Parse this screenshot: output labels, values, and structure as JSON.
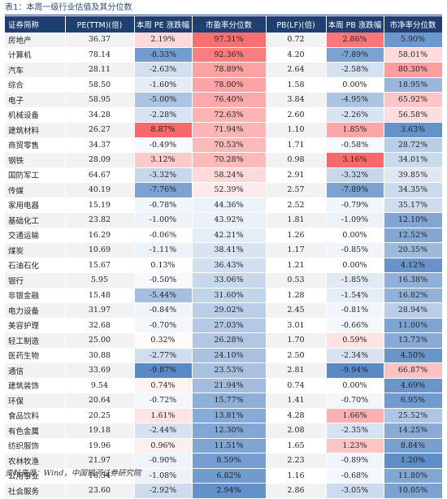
{
  "title": "表1：本周一级行业估值及其分位数",
  "source": "资料来源：Wind，中国银河证券研究院",
  "headers": [
    "证券简称",
    "PE(TTM)(倍)",
    "本周 PE 涨跌幅",
    "市盈率分位数",
    "PB(LF)(倍)",
    "本周 PB 涨跌幅",
    "市净率分位数"
  ],
  "rows": [
    [
      "房地产",
      "36.37",
      "2.19%",
      "97.31%",
      "0.72",
      "2.86%",
      "5.90%"
    ],
    [
      "计算机",
      "78.14",
      "-8.33%",
      "92.36%",
      "4.20",
      "-7.89%",
      "58.01%"
    ],
    [
      "汽车",
      "28.11",
      "-2.63%",
      "78.89%",
      "2.64",
      "-2.58%",
      "80.30%"
    ],
    [
      "综合",
      "58.50",
      "-1.60%",
      "78.00%",
      "1.58",
      "0.00%",
      "18.95%"
    ],
    [
      "电子",
      "58.95",
      "-5.00%",
      "76.40%",
      "3.84",
      "-4.95%",
      "65.92%"
    ],
    [
      "机械设备",
      "34.28",
      "-2.28%",
      "72.63%",
      "2.60",
      "-2.26%",
      "56.58%"
    ],
    [
      "建筑材料",
      "26.27",
      "8.87%",
      "71.94%",
      "1.10",
      "1.85%",
      "3.63%"
    ],
    [
      "商贸零售",
      "34.37",
      "-0.49%",
      "70.53%",
      "1.71",
      "-0.58%",
      "28.72%"
    ],
    [
      "钢铁",
      "28.09",
      "3.12%",
      "70.28%",
      "0.98",
      "3.16%",
      "34.01%"
    ],
    [
      "国防军工",
      "64.67",
      "-3.32%",
      "58.24%",
      "2.91",
      "-3.32%",
      "39.85%"
    ],
    [
      "传媒",
      "40.19",
      "-7.76%",
      "52.39%",
      "2.57",
      "-7.89%",
      "34.35%"
    ],
    [
      "家用电器",
      "15.19",
      "-0.78%",
      "44.36%",
      "2.52",
      "-0.79%",
      "35.17%"
    ],
    [
      "基础化工",
      "23.82",
      "-1.00%",
      "43.92%",
      "1.81",
      "-1.09%",
      "12.10%"
    ],
    [
      "交通运输",
      "16.29",
      "-0.06%",
      "42.21%",
      "1.26",
      "0.00%",
      "12.52%"
    ],
    [
      "煤炭",
      "10.69",
      "-1.11%",
      "38.41%",
      "1.17",
      "-0.85%",
      "20.35%"
    ],
    [
      "石油石化",
      "15.67",
      "0.13%",
      "36.43%",
      "1.21",
      "0.00%",
      "4.12%"
    ],
    [
      "银行",
      "5.95",
      "-0.50%",
      "33.06%",
      "0.53",
      "-1.85%",
      "16.38%"
    ],
    [
      "非银金融",
      "15.48",
      "-5.44%",
      "31.60%",
      "1.28",
      "-1.54%",
      "16.82%"
    ],
    [
      "电力设备",
      "31.97",
      "-0.84%",
      "29.02%",
      "2.45",
      "-0.81%",
      "28.94%"
    ],
    [
      "美容护理",
      "32.68",
      "-0.70%",
      "27.03%",
      "3.01",
      "-0.66%",
      "11.00%"
    ],
    [
      "轻工制造",
      "25.00",
      "0.32%",
      "26.28%",
      "1.70",
      "0.59%",
      "13.73%"
    ],
    [
      "医药生物",
      "30.88",
      "-2.77%",
      "24.10%",
      "2.50",
      "-2.34%",
      "4.50%"
    ],
    [
      "通信",
      "33.69",
      "-9.87%",
      "23.53%",
      "2.81",
      "-9.94%",
      "66.87%"
    ],
    [
      "建筑装饰",
      "9.54",
      "0.74%",
      "21.94%",
      "0.74",
      "0.00%",
      "4.69%"
    ],
    [
      "环保",
      "20.64",
      "-0.72%",
      "15.77%",
      "1.41",
      "-0.70%",
      "6.95%"
    ],
    [
      "食品饮料",
      "20.25",
      "1.61%",
      "13.81%",
      "4.28",
      "1.66%",
      "25.52%"
    ],
    [
      "有色金属",
      "19.18",
      "-2.44%",
      "12.30%",
      "2.08",
      "-2.35%",
      "14.25%"
    ],
    [
      "纺织服饰",
      "19.96",
      "0.96%",
      "11.51%",
      "1.65",
      "1.23%",
      "8.84%"
    ],
    [
      "农林牧渔",
      "21.97",
      "-0.90%",
      "8.59%",
      "2.23",
      "-0.89%",
      "1.20%"
    ],
    [
      "公用事业",
      "16.54",
      "-1.08%",
      "6.82%",
      "1.16",
      "-0.68%",
      "11.80%"
    ],
    [
      "社会服务",
      "23.60",
      "-2.92%",
      "2.94%",
      "2.86",
      "-3.05%",
      "10.05%"
    ]
  ],
  "colors": {
    "header_bg": "#1f3f70",
    "positive_scale": "#f8696b",
    "negative_scale": "#5a8ac6",
    "neutral": "#ffffff"
  }
}
